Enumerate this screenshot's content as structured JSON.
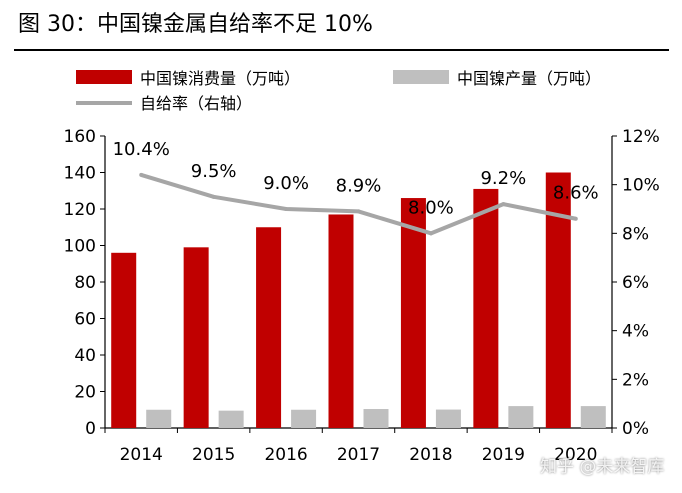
{
  "title": "图 30：中国镍金属自给率不足 10%",
  "watermark": "知乎 @未来智库",
  "colors": {
    "consumption": "#C00000",
    "production": "#BFBFBF",
    "ratio": "#A6A6A6"
  },
  "chart_data": {
    "type": "bar",
    "categories": [
      "2014",
      "2015",
      "2016",
      "2017",
      "2018",
      "2019",
      "2020"
    ],
    "series": [
      {
        "name": "中国镍消费量（万吨）",
        "kind": "bar",
        "axis": "left",
        "values": [
          96,
          99,
          110,
          117,
          126,
          131,
          140
        ]
      },
      {
        "name": "中国镍产量（万吨）",
        "kind": "bar",
        "axis": "left",
        "values": [
          10,
          9.5,
          10,
          10.4,
          10.1,
          12,
          12
        ]
      },
      {
        "name": "自给率（右轴）",
        "kind": "line",
        "axis": "right",
        "values": [
          10.4,
          9.5,
          9.0,
          8.9,
          8.0,
          9.2,
          8.6
        ],
        "labels": [
          "10.4%",
          "9.5%",
          "9.0%",
          "8.9%",
          "8.0%",
          "9.2%",
          "8.6%"
        ]
      }
    ],
    "y_left": {
      "lim": [
        0,
        160
      ],
      "ticks": [
        "0",
        "20",
        "40",
        "60",
        "80",
        "100",
        "120",
        "140",
        "160"
      ]
    },
    "y_right": {
      "lim": [
        0,
        12
      ],
      "ticks": [
        "0%",
        "2%",
        "4%",
        "6%",
        "8%",
        "10%",
        "12%"
      ]
    },
    "legend_position": "top",
    "grid": false
  }
}
